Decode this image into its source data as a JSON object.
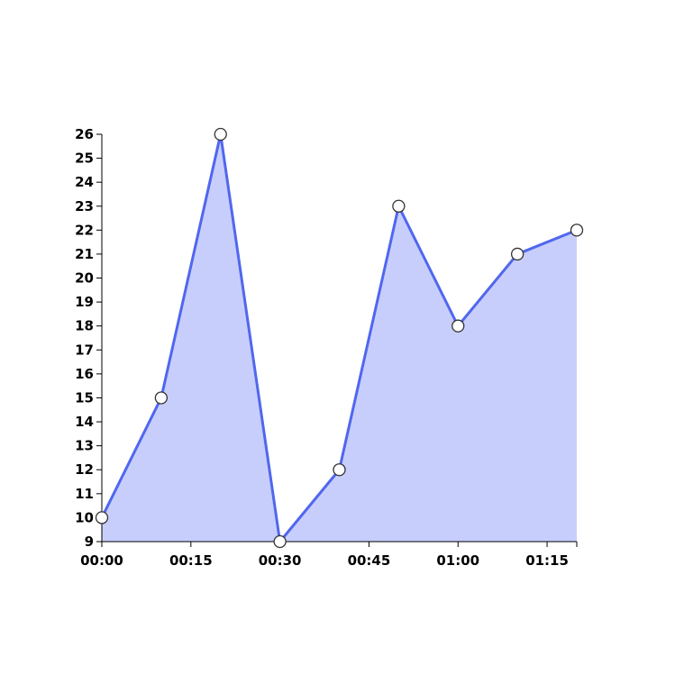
{
  "chart_data": {
    "type": "area",
    "title": "",
    "xlabel": "",
    "ylabel": "",
    "x": [
      "00:00",
      "00:10",
      "00:20",
      "00:30",
      "00:40",
      "00:50",
      "01:00",
      "01:10",
      "01:20"
    ],
    "series": [
      {
        "values": [
          10,
          15,
          26,
          9,
          12,
          23,
          18,
          21,
          22
        ]
      }
    ],
    "x_ticks": [
      "00:00",
      "00:15",
      "00:30",
      "00:45",
      "01:00",
      "01:15"
    ],
    "y_ticks": [
      9,
      10,
      11,
      12,
      13,
      14,
      15,
      16,
      17,
      18,
      19,
      20,
      21,
      22,
      23,
      24,
      25,
      26
    ],
    "xlim_minutes_label": [
      "00:00",
      "01:20"
    ],
    "ylim": [
      9,
      26
    ],
    "grid": false,
    "legend": "none",
    "colors": {
      "line": "#5067ee",
      "fill": "#c8cefc",
      "marker_fill": "#ffffff",
      "marker_stroke": "#333333",
      "axis": "#000000"
    }
  }
}
